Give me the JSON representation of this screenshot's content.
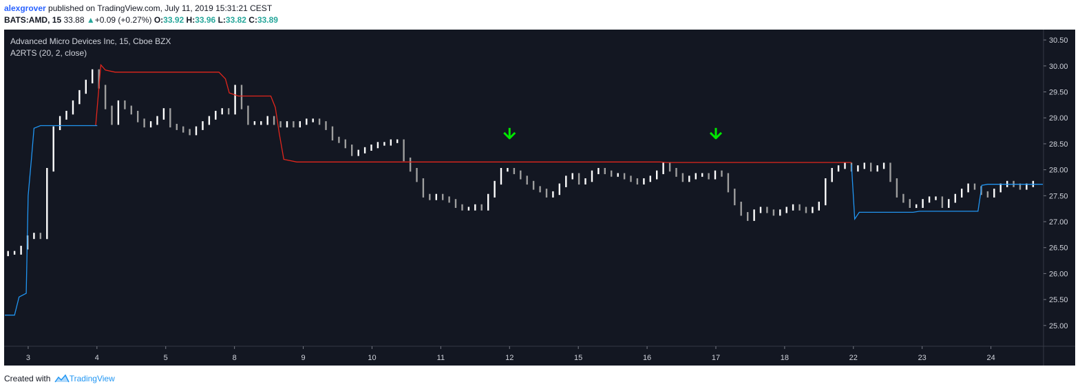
{
  "header": {
    "author": "alexgrover",
    "published_text": "published on TradingView.com, July 11, 2019 15:31:21 CEST",
    "symbol": "BATS:AMD, 15",
    "last": "33.88",
    "change": "+0.09 (+0.27%)",
    "o_label": "O:",
    "o_val": "33.92",
    "h_label": "H:",
    "h_val": "33.96",
    "l_label": "L:",
    "l_val": "33.82",
    "c_label": "C:",
    "c_val": "33.89"
  },
  "legend": {
    "title": "Advanced Micro Devices Inc, 15, Cboe BZX",
    "indicator": "A2RTS (20, 2, close)"
  },
  "footer": {
    "created_with": "Created with",
    "brand": "TradingView"
  },
  "colors": {
    "background": "#131722",
    "upper_band": "#e3261c",
    "lower_band": "#2196f3",
    "bar_up": "#ffffff",
    "bar_down": "#9e9e9e",
    "signal_arrow": "#00e600"
  },
  "chart_data": {
    "type": "ohlc",
    "y_ticks": [
      "30.50",
      "30.00",
      "29.50",
      "29.00",
      "28.50",
      "28.00",
      "27.50",
      "27.00",
      "26.50",
      "26.00",
      "25.50",
      "25.00"
    ],
    "ylim": [
      24.6,
      30.7
    ],
    "x_ticks": [
      "3",
      "4",
      "5",
      "8",
      "9",
      "10",
      "11",
      "12",
      "15",
      "16",
      "17",
      "18",
      "22",
      "23",
      "24"
    ],
    "x_tick_index": [
      3.6,
      14.2,
      24.8,
      35.4,
      46.0,
      56.6,
      67.2,
      77.8,
      88.4,
      99.0,
      109.6,
      120.2,
      130.8,
      141.4,
      152.0
    ],
    "bar_count": 160,
    "close": [
      26.4,
      26.4,
      26.5,
      26.7,
      26.75,
      26.7,
      28.0,
      28.8,
      29.0,
      29.1,
      29.3,
      29.5,
      29.7,
      29.9,
      29.6,
      29.2,
      28.9,
      29.3,
      29.2,
      29.1,
      28.95,
      28.85,
      28.9,
      29.0,
      29.15,
      28.85,
      28.8,
      28.75,
      28.7,
      28.8,
      28.9,
      29.0,
      29.1,
      29.15,
      29.1,
      29.6,
      29.2,
      28.9,
      28.9,
      28.9,
      29.0,
      28.9,
      28.85,
      28.9,
      28.85,
      28.9,
      28.95,
      28.95,
      28.9,
      28.8,
      28.6,
      28.55,
      28.45,
      28.3,
      28.35,
      28.4,
      28.45,
      28.5,
      28.5,
      28.55,
      28.55,
      28.2,
      28.0,
      27.8,
      27.5,
      27.45,
      27.5,
      27.45,
      27.4,
      27.3,
      27.25,
      27.25,
      27.3,
      27.25,
      27.5,
      27.75,
      28.0,
      28.0,
      27.95,
      27.85,
      27.75,
      27.65,
      27.6,
      27.5,
      27.55,
      27.7,
      27.85,
      27.9,
      27.75,
      27.8,
      27.95,
      28.0,
      27.95,
      27.9,
      27.9,
      27.85,
      27.8,
      27.75,
      27.8,
      27.85,
      27.95,
      28.1,
      28.0,
      27.9,
      27.8,
      27.85,
      27.9,
      27.9,
      27.85,
      27.95,
      27.9,
      27.6,
      27.35,
      27.15,
      27.05,
      27.2,
      27.25,
      27.2,
      27.15,
      27.2,
      27.25,
      27.3,
      27.25,
      27.2,
      27.25,
      27.35,
      27.8,
      28.0,
      28.05,
      28.1,
      28.0,
      28.05,
      28.1,
      28.0,
      28.05,
      28.1,
      27.8,
      27.5,
      27.4,
      27.3,
      27.3,
      27.4,
      27.45,
      27.45,
      27.3,
      27.4,
      27.5,
      27.6,
      27.7,
      27.65,
      27.55,
      27.5,
      27.6,
      27.7,
      27.75,
      27.7,
      27.65,
      27.7,
      27.75
    ],
    "upper_band": [
      [
        14,
        28.85
      ],
      [
        14.8,
        30.02
      ],
      [
        15.5,
        29.92
      ],
      [
        17,
        29.88
      ],
      [
        33,
        29.88
      ],
      [
        34,
        29.75
      ],
      [
        34.6,
        29.48
      ],
      [
        36,
        29.42
      ],
      [
        41,
        29.42
      ],
      [
        41.7,
        29.2
      ],
      [
        42.3,
        28.7
      ],
      [
        43,
        28.2
      ],
      [
        45,
        28.15
      ],
      [
        101,
        28.15
      ],
      [
        102,
        28.14
      ],
      [
        130.5,
        28.14
      ]
    ],
    "lower_band": [
      [
        0,
        25.2
      ],
      [
        1.5,
        25.2
      ],
      [
        2.2,
        25.55
      ],
      [
        3.3,
        25.62
      ],
      [
        3.6,
        27.5
      ],
      [
        4.1,
        28.2
      ],
      [
        4.5,
        28.8
      ],
      [
        5.5,
        28.85
      ],
      [
        14,
        28.85
      ],
      [
        14.2,
        28.85
      ],
      [
        14.25,
        28.85
      ]
    ],
    "lower_band_2": [
      [
        130.5,
        28.1
      ],
      [
        131,
        27.05
      ],
      [
        131.7,
        27.18
      ],
      [
        140,
        27.18
      ],
      [
        141,
        27.2
      ],
      [
        150,
        27.2
      ],
      [
        150.6,
        27.7
      ],
      [
        151.5,
        27.72
      ],
      [
        160,
        27.72
      ]
    ],
    "signals": [
      {
        "index": 77.8,
        "price": 28.7,
        "direction": "down"
      },
      {
        "index": 109.6,
        "price": 28.7,
        "direction": "down"
      }
    ]
  }
}
